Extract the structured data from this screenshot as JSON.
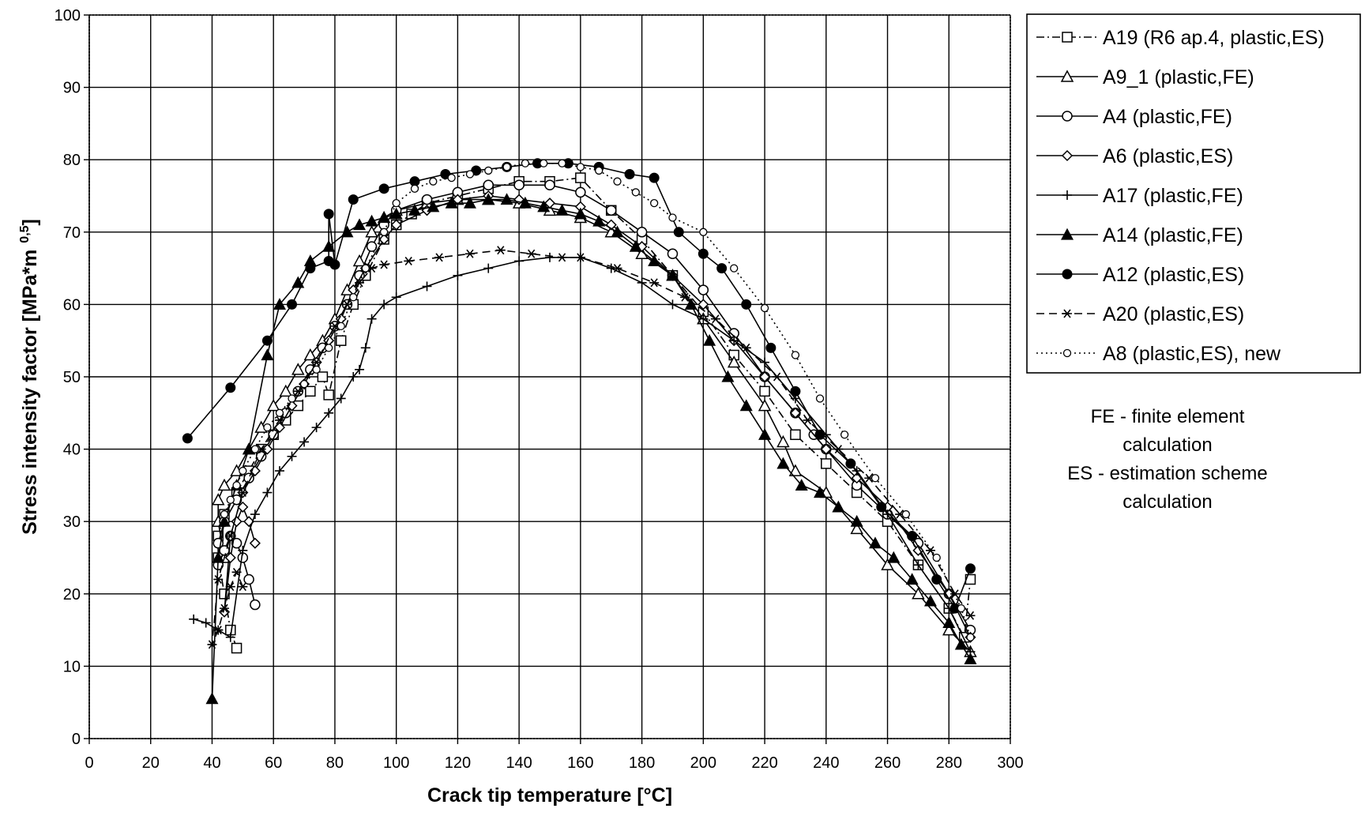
{
  "chart_data": {
    "type": "line",
    "xlabel": "Crack tip temperature [°C]",
    "ylabel": "Stress intensity factor [MPa*m",
    "ylabel_sup": "0,5",
    "ylabel_end": "]",
    "xlim": [
      0,
      300
    ],
    "ylim": [
      0,
      100
    ],
    "x_ticks": [
      0,
      20,
      40,
      60,
      80,
      100,
      120,
      140,
      160,
      180,
      200,
      220,
      240,
      260,
      280,
      300
    ],
    "y_ticks": [
      0,
      10,
      20,
      30,
      40,
      50,
      60,
      70,
      80,
      90,
      100
    ],
    "x_tick_labels": [
      "0",
      "20",
      "40",
      "60",
      "80",
      "100",
      "120",
      "140",
      "160",
      "180",
      "200",
      "220",
      "240",
      "260",
      "280",
      "300"
    ],
    "y_tick_labels": [
      "0",
      "10",
      "20",
      "30",
      "40",
      "50",
      "60",
      "70",
      "80",
      "90",
      "100"
    ],
    "grid": true,
    "legend_position": "right-top",
    "notes": [
      "FE - finite element",
      "calculation",
      "ES - estimation scheme",
      "calculation"
    ],
    "series": [
      {
        "name": "A19 (R6 ap.4, plastic,ES)",
        "marker": "square-open",
        "dash": "dashdot",
        "x": [
          48,
          46,
          44,
          42,
          42,
          44,
          48,
          52,
          56,
          60,
          64,
          68,
          72,
          76,
          78,
          82,
          86,
          90,
          96,
          100,
          105,
          110,
          120,
          130,
          140,
          150,
          160,
          170,
          180,
          190,
          200,
          210,
          220,
          230,
          240,
          250,
          260,
          270,
          280,
          285,
          287
        ],
        "y": [
          12.5,
          15,
          20,
          25,
          28,
          31,
          34,
          37,
          40,
          42,
          44,
          46,
          48,
          50,
          47.5,
          55,
          60,
          64,
          69,
          71,
          72.5,
          74,
          75,
          76,
          77,
          77,
          77.5,
          73,
          69,
          64,
          59,
          53,
          48,
          42,
          38,
          34,
          30,
          24,
          18,
          14,
          22
        ]
      },
      {
        "name": "A9_1 (plastic,FE)",
        "marker": "triangle-open",
        "dash": "solid",
        "x": [
          44,
          42,
          42,
          44,
          48,
          52,
          56,
          60,
          64,
          68,
          72,
          76,
          80,
          84,
          88,
          92,
          96,
          100,
          110,
          120,
          130,
          140,
          150,
          160,
          170,
          180,
          190,
          200,
          210,
          220,
          226,
          230,
          240,
          250,
          260,
          270,
          280,
          287
        ],
        "y": [
          25,
          30,
          33,
          35,
          37,
          40,
          43,
          46,
          48,
          51,
          53,
          55,
          58,
          62,
          66,
          70,
          72,
          73,
          74,
          74.5,
          74.5,
          74,
          73,
          72,
          70,
          67,
          64,
          58,
          52,
          46,
          41,
          37,
          34,
          29,
          24,
          20,
          15,
          12
        ]
      },
      {
        "name": "A4 (plastic,FE)",
        "marker": "circle-open",
        "dash": "solid",
        "x": [
          54,
          52,
          50,
          48,
          46,
          44,
          42,
          42,
          44,
          48,
          52,
          56,
          60,
          64,
          68,
          72,
          76,
          80,
          84,
          88,
          92,
          96,
          100,
          110,
          120,
          130,
          140,
          150,
          160,
          170,
          180,
          190,
          200,
          210,
          220,
          230,
          236,
          240,
          250,
          260,
          270,
          280,
          287
        ],
        "y": [
          18.5,
          22,
          25,
          27,
          28,
          26,
          24,
          27,
          30,
          33,
          36,
          39,
          42,
          45,
          48,
          51,
          54,
          57,
          60,
          64,
          68,
          71,
          73,
          74.5,
          75.5,
          76.5,
          76.5,
          76.5,
          75.5,
          73,
          70,
          67,
          62,
          56,
          50,
          45,
          42,
          40,
          35,
          31,
          27,
          20,
          15
        ]
      },
      {
        "name": "A6 (plastic,ES)",
        "marker": "diamond-open",
        "dash": "solid",
        "x": [
          54,
          52,
          50,
          48,
          46,
          44,
          46,
          50,
          54,
          58,
          62,
          66,
          70,
          74,
          78,
          82,
          86,
          90,
          96,
          100,
          110,
          120,
          130,
          140,
          150,
          160,
          170,
          180,
          190,
          200,
          210,
          220,
          230,
          240,
          250,
          260,
          270,
          280,
          287
        ],
        "y": [
          27,
          30,
          32,
          30,
          25,
          17.5,
          28,
          34,
          37,
          40,
          43,
          46,
          49,
          52,
          55,
          58,
          62,
          65,
          69,
          71,
          73,
          74.5,
          75,
          74.5,
          74,
          73.5,
          71,
          68,
          64,
          60,
          55,
          50,
          45,
          40,
          36,
          32,
          26,
          20,
          14
        ]
      },
      {
        "name": "A17 (plastic,FE)",
        "marker": "plus",
        "dash": "solid",
        "x": [
          34,
          38,
          42,
          46,
          50,
          54,
          58,
          62,
          66,
          70,
          74,
          78,
          82,
          86,
          88,
          90,
          92,
          96,
          100,
          110,
          120,
          130,
          140,
          150,
          160,
          170,
          180,
          190,
          200,
          210,
          220,
          230,
          240,
          250,
          260,
          270,
          280,
          287
        ],
        "y": [
          16.5,
          16,
          15,
          14,
          26,
          31,
          34,
          37,
          39,
          41,
          43,
          45,
          47,
          50,
          51,
          54,
          58,
          60,
          61,
          62.5,
          64,
          65,
          66,
          66.5,
          66.5,
          65,
          63,
          60,
          58,
          55,
          52,
          47,
          42,
          37,
          31,
          24,
          18,
          12
        ]
      },
      {
        "name": "A14 (plastic,FE)",
        "marker": "triangle-filled",
        "dash": "solid",
        "x": [
          40,
          42,
          44,
          48,
          52,
          58,
          62,
          68,
          72,
          78,
          84,
          88,
          92,
          96,
          100,
          106,
          112,
          118,
          124,
          130,
          136,
          142,
          148,
          154,
          160,
          166,
          172,
          178,
          184,
          190,
          196,
          202,
          208,
          214,
          220,
          226,
          232,
          238,
          244,
          250,
          256,
          262,
          268,
          274,
          280,
          284,
          287
        ],
        "y": [
          5.5,
          25,
          30,
          35,
          40,
          53,
          60,
          63,
          66,
          68,
          70,
          71,
          71.5,
          72,
          72.5,
          73,
          73.5,
          74,
          74,
          74.5,
          74.5,
          74,
          73.5,
          73,
          72.5,
          71.5,
          70,
          68,
          66,
          64,
          60,
          55,
          50,
          46,
          42,
          38,
          35,
          34,
          32,
          30,
          27,
          25,
          22,
          19,
          16,
          13,
          11
        ]
      },
      {
        "name": "A12 (plastic,ES)",
        "marker": "circle-filled",
        "dash": "solid",
        "x": [
          32,
          46,
          58,
          66,
          72,
          78,
          78,
          80,
          86,
          96,
          106,
          116,
          126,
          136,
          146,
          156,
          166,
          176,
          184,
          192,
          200,
          206,
          214,
          222,
          230,
          238,
          248,
          258,
          268,
          276,
          282,
          287
        ],
        "y": [
          41.5,
          48.5,
          55,
          60,
          65,
          66,
          72.5,
          65.5,
          74.5,
          76,
          77,
          78,
          78.5,
          79,
          79.5,
          79.5,
          79,
          78,
          77.5,
          70,
          67,
          65,
          60,
          54,
          48,
          42,
          38,
          32,
          28,
          22,
          18,
          23.5
        ]
      },
      {
        "name": "A20 (plastic,ES)",
        "marker": "asterisk",
        "dash": "dashed",
        "x": [
          50,
          48,
          46,
          44,
          42,
          40,
          42,
          46,
          50,
          56,
          62,
          68,
          74,
          80,
          84,
          88,
          92,
          96,
          104,
          114,
          124,
          134,
          144,
          154,
          160,
          172,
          184,
          194,
          204,
          214,
          224,
          234,
          244,
          254,
          264,
          274,
          282,
          287
        ],
        "y": [
          21,
          23,
          21,
          18,
          15,
          13,
          22,
          28,
          34,
          40,
          44,
          48,
          52,
          57,
          60,
          63,
          65,
          65.5,
          66,
          66.5,
          67,
          67.5,
          67,
          66.5,
          66.5,
          65,
          63,
          61,
          58,
          54,
          50,
          44,
          40,
          36,
          31,
          26,
          20,
          17
        ]
      },
      {
        "name": "A8 (plastic,ES), new",
        "marker": "circle-open-small",
        "dash": "dotted",
        "x": [
          44,
          46,
          48,
          50,
          54,
          58,
          62,
          66,
          70,
          74,
          78,
          82,
          86,
          90,
          96,
          100,
          106,
          112,
          118,
          124,
          130,
          136,
          142,
          148,
          154,
          160,
          166,
          172,
          178,
          184,
          190,
          200,
          210,
          220,
          230,
          238,
          246,
          256,
          266,
          276,
          284,
          287
        ],
        "y": [
          31,
          33,
          35,
          37,
          40,
          43,
          45,
          47,
          49,
          51,
          54,
          57,
          61,
          65,
          70,
          74,
          76,
          77,
          77.5,
          78,
          78.5,
          79,
          79.5,
          79.5,
          79.5,
          79,
          78.5,
          77,
          75.5,
          74,
          72,
          70,
          65,
          59.5,
          53,
          47,
          42,
          36,
          31,
          25,
          18,
          14
        ]
      }
    ]
  }
}
